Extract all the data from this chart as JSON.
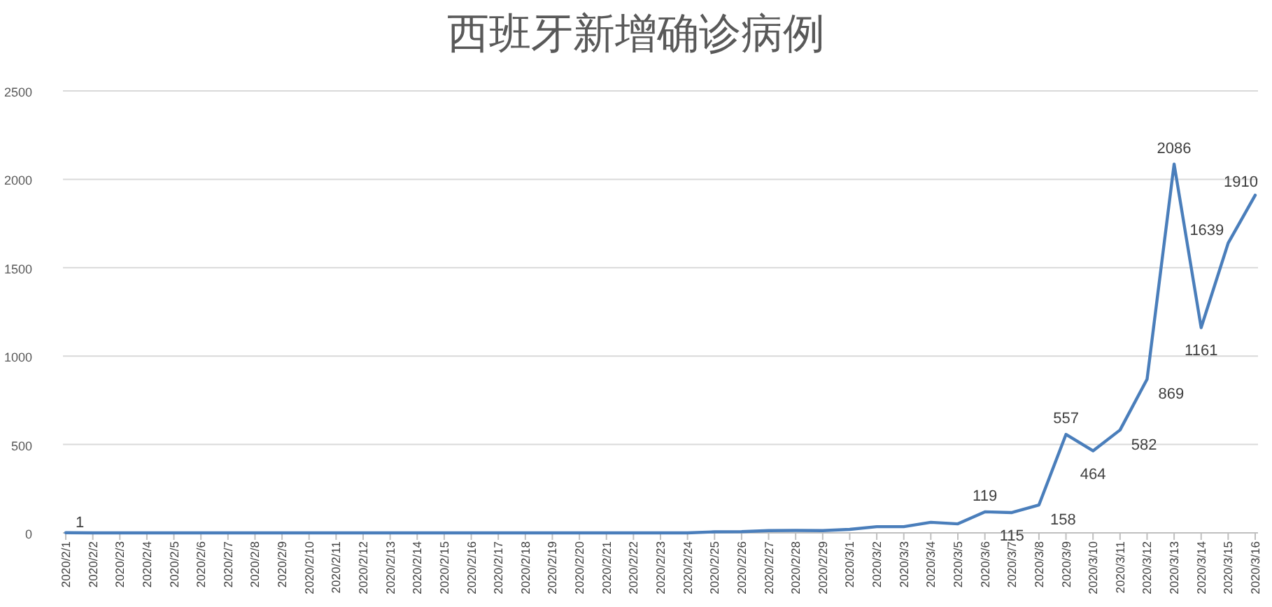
{
  "chart_data": {
    "type": "line",
    "title": "西班牙新增确诊病例",
    "categories": [
      "2020/2/1",
      "2020/2/2",
      "2020/2/3",
      "2020/2/4",
      "2020/2/5",
      "2020/2/6",
      "2020/2/7",
      "2020/2/8",
      "2020/2/9",
      "2020/2/10",
      "2020/2/11",
      "2020/2/12",
      "2020/2/13",
      "2020/2/14",
      "2020/2/15",
      "2020/2/16",
      "2020/2/17",
      "2020/2/18",
      "2020/2/19",
      "2020/2/20",
      "2020/2/21",
      "2020/2/22",
      "2020/2/23",
      "2020/2/24",
      "2020/2/25",
      "2020/2/26",
      "2020/2/27",
      "2020/2/28",
      "2020/2/29",
      "2020/3/1",
      "2020/3/2",
      "2020/3/3",
      "2020/3/4",
      "2020/3/5",
      "2020/3/6",
      "2020/3/7",
      "2020/3/8",
      "2020/3/9",
      "2020/3/10",
      "2020/3/11",
      "2020/3/12",
      "2020/3/13",
      "2020/3/14",
      "2020/3/15",
      "2020/3/16"
    ],
    "series": [
      {
        "color": "#4a7ebb",
        "values": [
          1,
          0,
          0,
          0,
          0,
          0,
          0,
          0,
          0,
          0,
          0,
          0,
          0,
          0,
          0,
          0,
          0,
          0,
          0,
          0,
          0,
          0,
          0,
          0,
          6,
          7,
          13,
          14,
          13,
          20,
          35,
          35,
          60,
          51,
          119,
          115,
          158,
          557,
          464,
          582,
          869,
          2086,
          1161,
          1639,
          1910
        ],
        "value_labels": [
          "1",
          null,
          null,
          null,
          null,
          null,
          null,
          null,
          null,
          null,
          null,
          null,
          null,
          null,
          null,
          null,
          null,
          null,
          null,
          null,
          null,
          null,
          null,
          null,
          null,
          null,
          null,
          null,
          null,
          null,
          null,
          null,
          null,
          null,
          "119",
          "115",
          "158",
          "557",
          "464",
          "582",
          "869",
          "2086",
          "1161",
          "1639",
          "1910"
        ]
      }
    ],
    "ylim": [
      0,
      2500
    ],
    "yticks": [
      0,
      500,
      1000,
      1500,
      2000,
      2500
    ],
    "grid": "y",
    "marker": "none",
    "line_style": "solid"
  }
}
